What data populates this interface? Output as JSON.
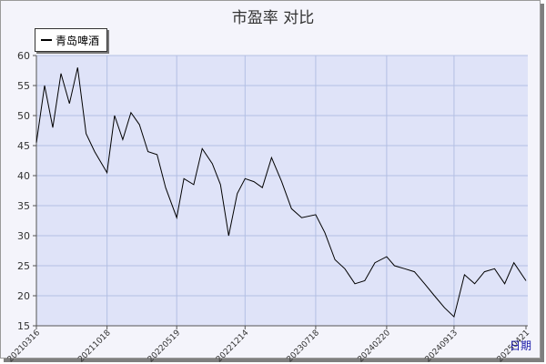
{
  "chart_data": {
    "type": "line",
    "title": "市盈率  对比",
    "xlabel": "日期",
    "ylabel": "",
    "ylim": [
      15,
      60
    ],
    "yticks": [
      15,
      20,
      25,
      30,
      35,
      40,
      45,
      50,
      55,
      60
    ],
    "grid": true,
    "legend_position": "top-left",
    "plot_bg": "#dfe3f8",
    "grid_color": "#b3bfe3",
    "line_color": "#000000",
    "xticks": [
      "20210316",
      "20211018",
      "20220519",
      "20221214",
      "20230718",
      "20240220",
      "20240913",
      "20250421"
    ],
    "x": [
      "20210316",
      "20210410",
      "20210505",
      "20210530",
      "20210625",
      "20210720",
      "20210815",
      "20210910",
      "20211018",
      "20211110",
      "20211205",
      "20211230",
      "20220125",
      "20220220",
      "20220320",
      "20220415",
      "20220519",
      "20220610",
      "20220710",
      "20220805",
      "20220905",
      "20220930",
      "20221025",
      "20221120",
      "20221214",
      "20230110",
      "20230205",
      "20230305",
      "20230405",
      "20230505",
      "20230605",
      "20230718",
      "20230815",
      "20230915",
      "20231015",
      "20231115",
      "20231215",
      "20240115",
      "20240220",
      "20240315",
      "20240415",
      "20240515",
      "20240615",
      "20240715",
      "20240815",
      "20240913",
      "20241015",
      "20241115",
      "20241215",
      "20250115",
      "20250215",
      "20250315",
      "20250421"
    ],
    "series": [
      {
        "name": "青岛啤酒",
        "values": [
          45.5,
          55.0,
          48.0,
          57.0,
          52.0,
          58.0,
          47.0,
          44.0,
          40.5,
          50.0,
          46.0,
          50.5,
          48.5,
          44.0,
          43.5,
          38.0,
          33.0,
          39.5,
          38.5,
          44.5,
          42.0,
          38.5,
          30.0,
          37.0,
          39.5,
          39.0,
          38.0,
          43.0,
          39.0,
          34.5,
          33.0,
          33.5,
          30.5,
          26.0,
          24.5,
          22.0,
          22.5,
          25.5,
          26.5,
          25.0,
          24.5,
          24.0,
          22.0,
          20.0,
          18.0,
          16.5,
          23.5,
          22.0,
          24.0,
          24.5,
          22.0,
          25.5,
          22.5
        ]
      }
    ]
  }
}
